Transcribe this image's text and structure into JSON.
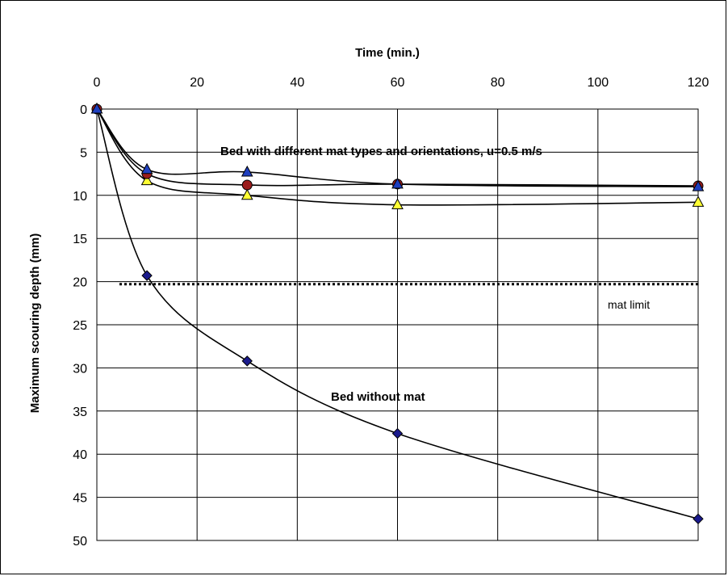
{
  "chart_data": {
    "type": "line",
    "title": "",
    "xlabel": "Time (min.)",
    "ylabel": "Maximum scouring depth (mm)",
    "xlim": [
      0,
      120
    ],
    "ylim": [
      0,
      50
    ],
    "y_inverted": true,
    "x_axis_position": "top",
    "xticks": [
      0,
      20,
      40,
      60,
      80,
      100,
      120
    ],
    "yticks": [
      0,
      5,
      10,
      15,
      20,
      25,
      30,
      35,
      40,
      45,
      50
    ],
    "grid": true,
    "series": [
      {
        "x": [
          0,
          10,
          30,
          60,
          120
        ],
        "y": [
          0,
          7.0,
          7.3,
          8.7,
          9.0
        ],
        "marker": "triangle",
        "color": "#1f3fbf"
      },
      {
        "x": [
          0,
          10,
          30,
          60,
          120
        ],
        "y": [
          0,
          7.5,
          8.8,
          8.7,
          8.9
        ],
        "marker": "circle",
        "color": "#9b1c1c"
      },
      {
        "x": [
          0,
          10,
          30,
          60,
          120
        ],
        "y": [
          0,
          8.3,
          10.0,
          11.1,
          10.8
        ],
        "marker": "triangle",
        "color": "#ffff33"
      },
      {
        "x": [
          0,
          10,
          30,
          60,
          120
        ],
        "y": [
          0,
          19.3,
          29.2,
          37.6,
          47.5
        ],
        "marker": "diamond",
        "color": "#1a1a8c"
      }
    ],
    "reference_line": {
      "label": "mat limit",
      "y": 20.3,
      "style": "dotted"
    },
    "annotations": [
      {
        "text": "Bed with different mat types and orientations, u=0.5 m/s"
      },
      {
        "text": "Bed without mat"
      }
    ]
  }
}
